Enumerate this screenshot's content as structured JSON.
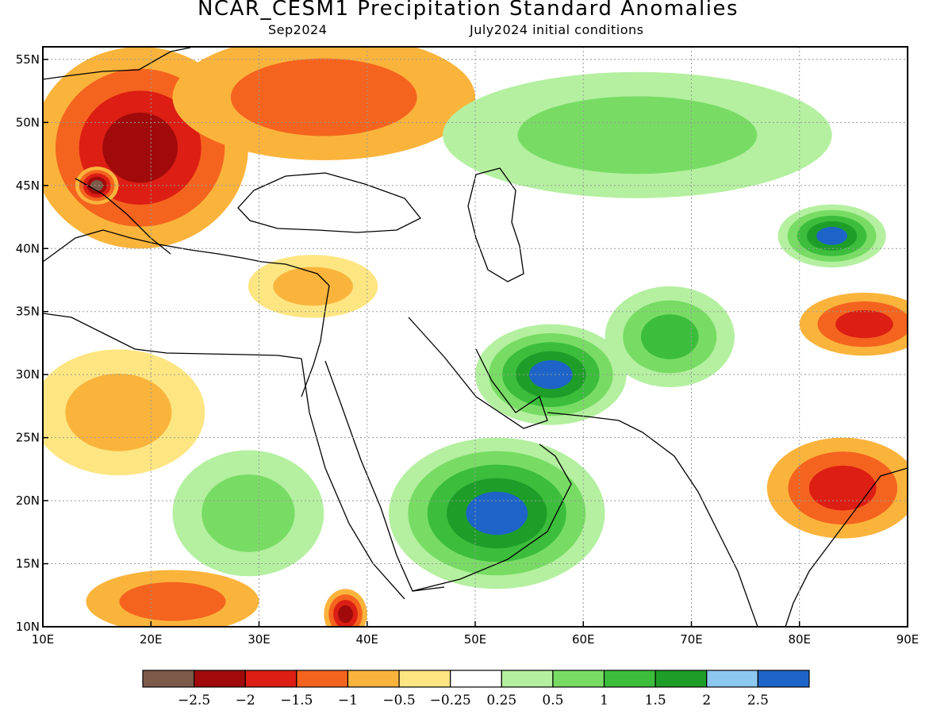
{
  "title": "NCAR_CESM1 Precipitation Standard Anomalies",
  "valid_month": "Sep2024",
  "initial_conditions": "July2024 initial conditions",
  "map": {
    "lon_min": 10,
    "lon_max": 90,
    "lat_min": 10,
    "lat_max": 56,
    "x_ticks": [
      {
        "lon": 10,
        "label": "10E"
      },
      {
        "lon": 20,
        "label": "20E"
      },
      {
        "lon": 30,
        "label": "30E"
      },
      {
        "lon": 40,
        "label": "40E"
      },
      {
        "lon": 50,
        "label": "50E"
      },
      {
        "lon": 60,
        "label": "60E"
      },
      {
        "lon": 70,
        "label": "70E"
      },
      {
        "lon": 80,
        "label": "80E"
      },
      {
        "lon": 90,
        "label": "90E"
      }
    ],
    "y_ticks": [
      {
        "lat": 10,
        "label": "10N"
      },
      {
        "lat": 15,
        "label": "15N"
      },
      {
        "lat": 20,
        "label": "20N"
      },
      {
        "lat": 25,
        "label": "25N"
      },
      {
        "lat": 30,
        "label": "30N"
      },
      {
        "lat": 35,
        "label": "35N"
      },
      {
        "lat": 40,
        "label": "40N"
      },
      {
        "lat": 45,
        "label": "45N"
      },
      {
        "lat": 50,
        "label": "50N"
      },
      {
        "lat": 55,
        "label": "55N"
      }
    ],
    "grid": "dotted"
  },
  "colorbar": {
    "colors": [
      "#7d5a4a",
      "#a00a0a",
      "#dc1e14",
      "#f5641e",
      "#fab43c",
      "#fde682",
      "#ffffff",
      "#b4f0a0",
      "#78dc64",
      "#3cbe3c",
      "#1e9e28",
      "#8cc8f0",
      "#1e64c8"
    ],
    "labels": [
      "−2.5",
      "−2",
      "−1.5",
      "−1",
      "−0.5",
      "−0.25",
      "0.25",
      "0.5",
      "1",
      "1.5",
      "2",
      "2.5"
    ]
  },
  "anomaly_regions": [
    {
      "name": "central-europe",
      "lon": 19,
      "lat": 48,
      "rlon": 10,
      "rlat": 8,
      "level": -2
    },
    {
      "name": "croatia-core",
      "lon": 15,
      "lat": 45,
      "rlon": 2,
      "rlat": 1.5,
      "level": -3
    },
    {
      "name": "ukraine-russia",
      "lon": 36,
      "lat": 52,
      "rlon": 14,
      "rlat": 5,
      "level": -1
    },
    {
      "name": "turkey-south",
      "lon": 35,
      "lat": 37,
      "rlon": 6,
      "rlat": 2.5,
      "level": -0.5
    },
    {
      "name": "libya-sahara",
      "lon": 17,
      "lat": 27,
      "rlon": 8,
      "rlat": 5,
      "level": -0.5
    },
    {
      "name": "kazakhstan",
      "lon": 65,
      "lat": 49,
      "rlon": 18,
      "rlat": 5,
      "level": 1
    },
    {
      "name": "kyrgyz-china",
      "lon": 83,
      "lat": 41,
      "rlon": 5,
      "rlat": 2.5,
      "level": 3
    },
    {
      "name": "iran-pakistan",
      "lon": 57,
      "lat": 30,
      "rlon": 7,
      "rlat": 4,
      "level": 3
    },
    {
      "name": "afghanistan",
      "lon": 68,
      "lat": 33,
      "rlon": 6,
      "rlat": 4,
      "level": 1.5
    },
    {
      "name": "arabia-south",
      "lon": 52,
      "lat": 19,
      "rlon": 10,
      "rlat": 6,
      "level": 2.5
    },
    {
      "name": "sudan",
      "lon": 29,
      "lat": 19,
      "rlon": 7,
      "rlat": 5,
      "level": 1
    },
    {
      "name": "india-east",
      "lon": 84,
      "lat": 21,
      "rlon": 7,
      "rlat": 4,
      "level": -1.5
    },
    {
      "name": "nepal-tibet",
      "lon": 86,
      "lat": 34,
      "rlon": 6,
      "rlat": 2.5,
      "level": -1.5
    },
    {
      "name": "chad-south",
      "lon": 22,
      "lat": 12,
      "rlon": 8,
      "rlat": 2.5,
      "level": -1
    },
    {
      "name": "ethiopia",
      "lon": 38,
      "lat": 11,
      "rlon": 2,
      "rlat": 2,
      "level": -2
    }
  ]
}
